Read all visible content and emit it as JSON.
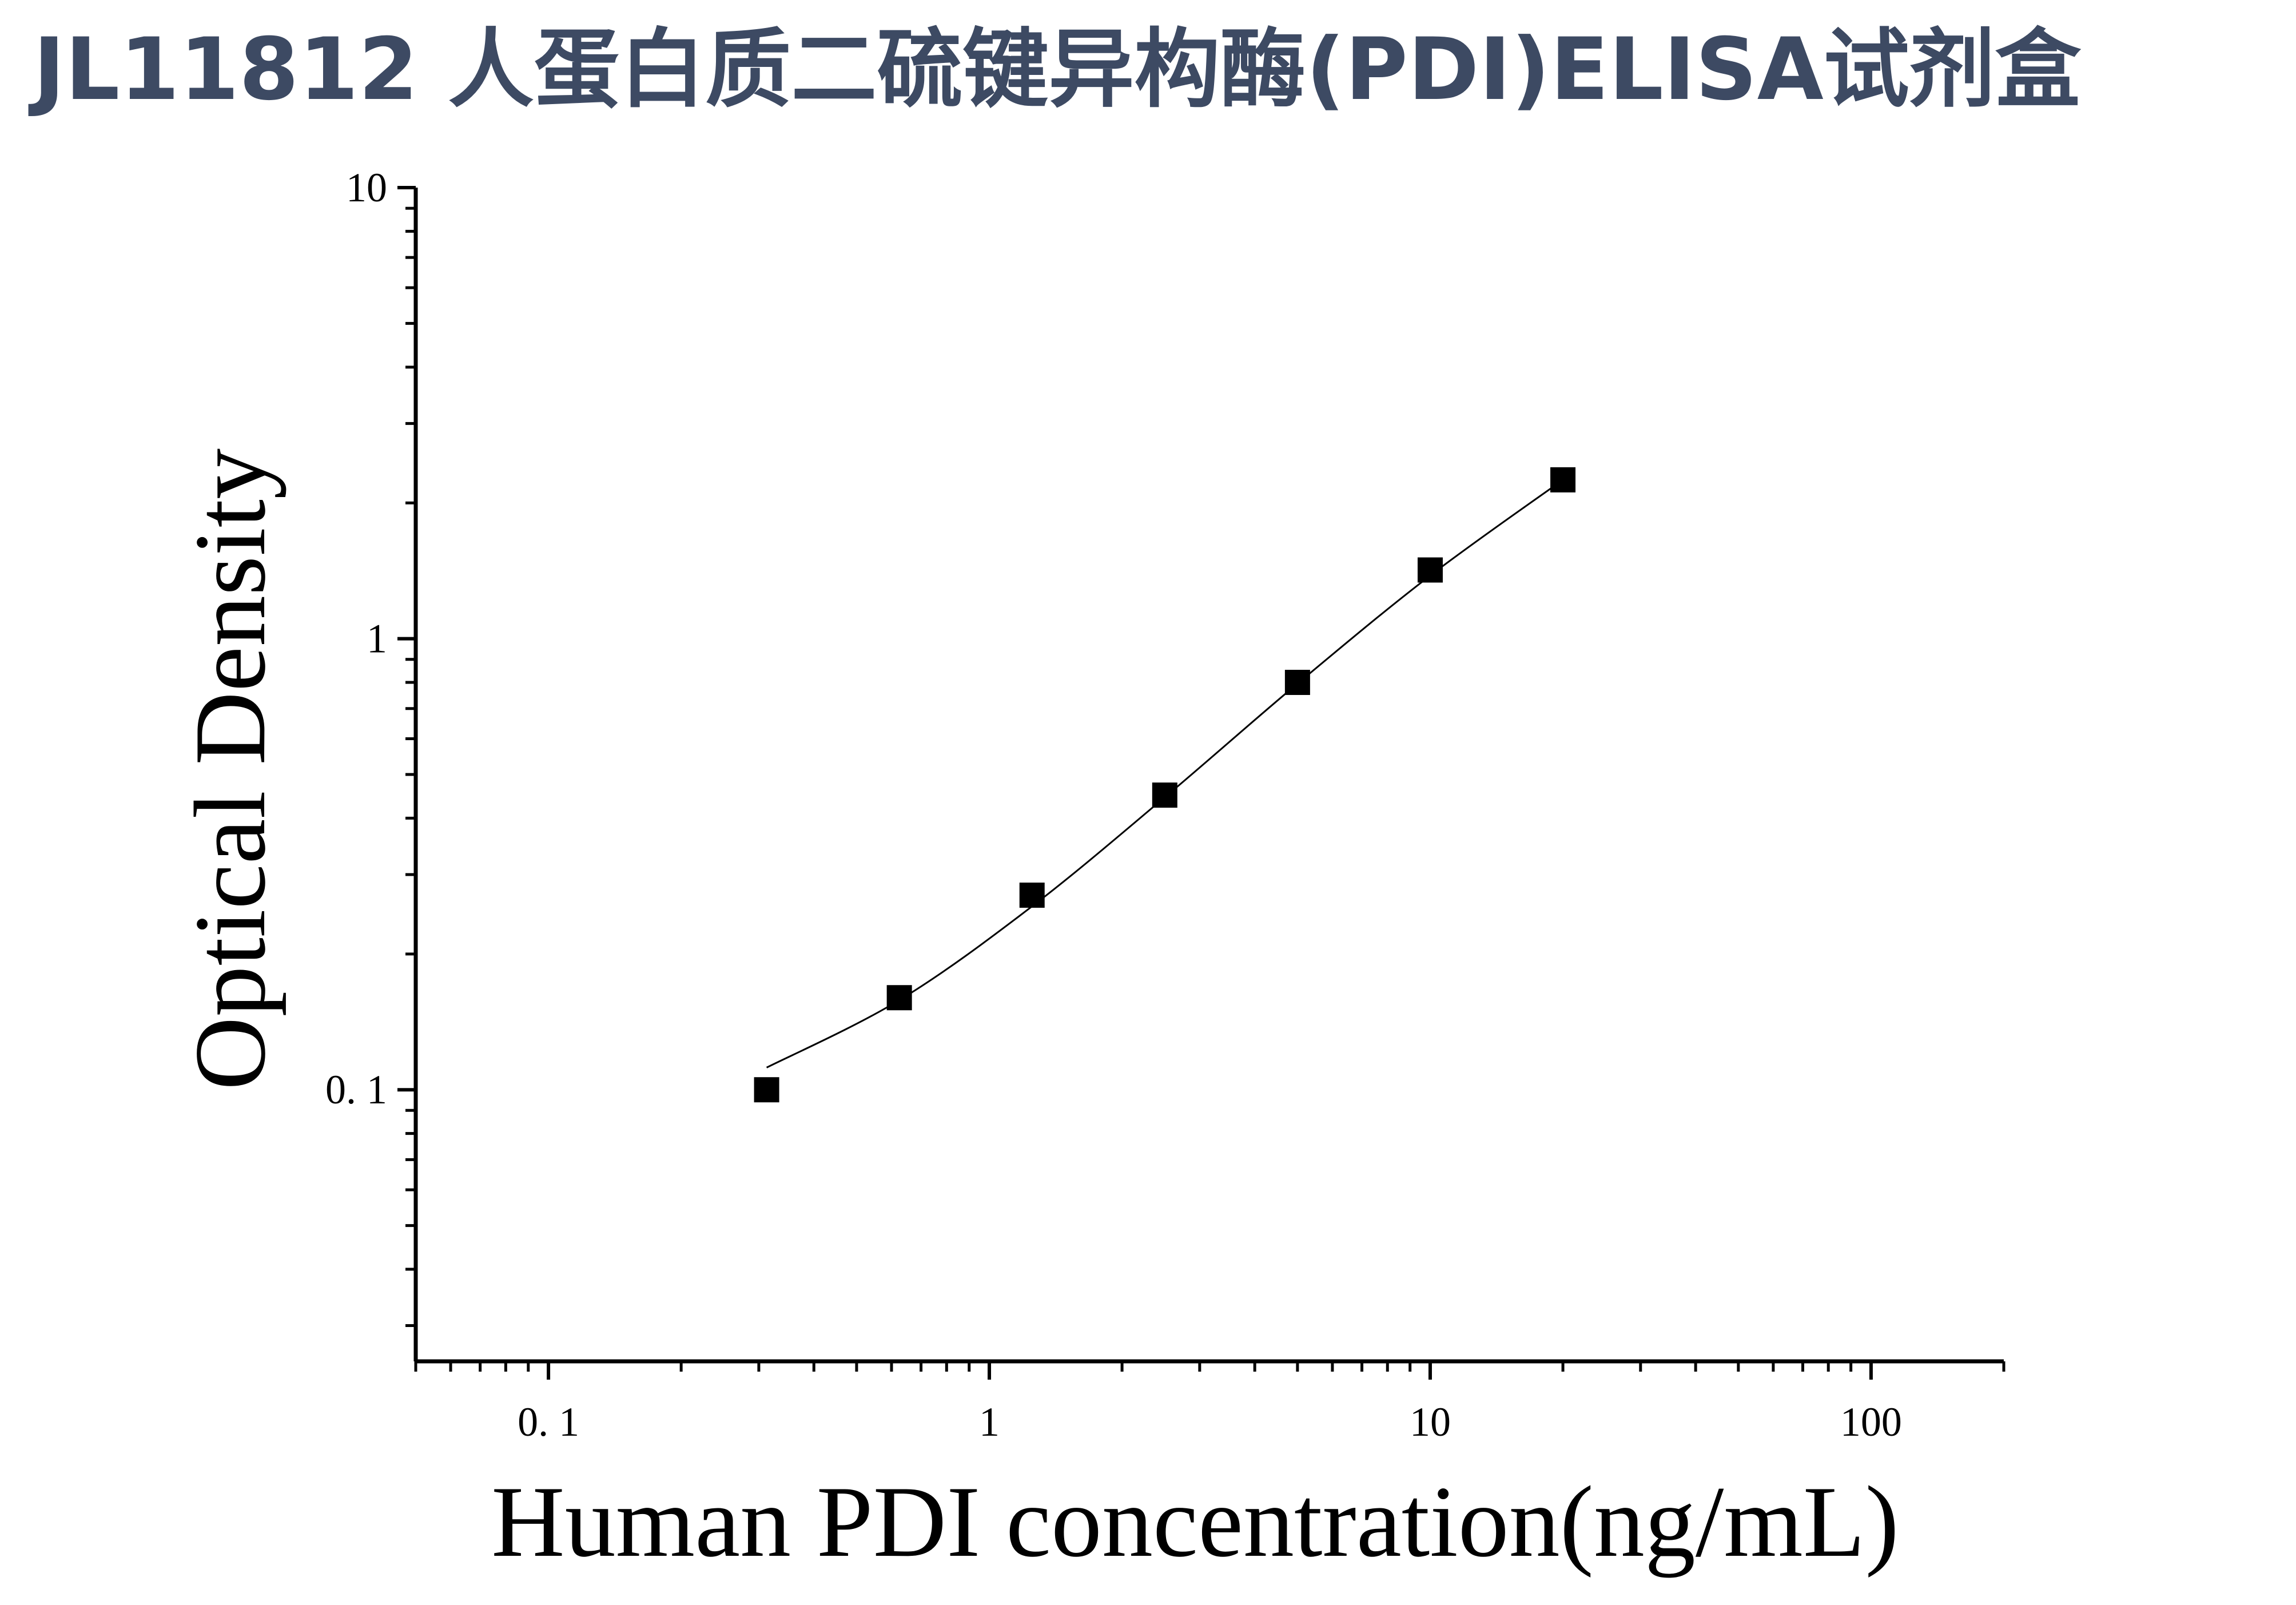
{
  "title": "JL11812 人蛋白质二硫键异构酶(PDI)ELISA试剂盒",
  "colors": {
    "title": "#3d4a63",
    "marks": "#000000",
    "background": "#ffffff"
  },
  "chart_data": {
    "type": "scatter",
    "title": "JL11812 人蛋白质二硫键异构酶(PDI)ELISA试剂盒",
    "xlabel": "Human PDI concentration(ng/mL)",
    "ylabel": "Optical Density",
    "xscale": "log",
    "yscale": "log",
    "xlim": [
      0.05,
      200
    ],
    "ylim": [
      0.025,
      10
    ],
    "xticks": [
      0.1,
      1,
      10,
      100
    ],
    "xtick_labels": [
      "0. 1",
      "1",
      "10",
      "100"
    ],
    "yticks": [
      0.1,
      1,
      10
    ],
    "ytick_labels": [
      "0. 1",
      "1",
      "10"
    ],
    "grid": false,
    "legend": "none",
    "series": [
      {
        "marker": "square",
        "x": [
          0.3125,
          0.625,
          1.25,
          2.5,
          5,
          10,
          20
        ],
        "y": [
          0.1,
          0.16,
          0.27,
          0.45,
          0.8,
          1.42,
          2.25
        ]
      }
    ],
    "fit_curve": {
      "type": "smooth",
      "x": [
        0.3125,
        0.625,
        1.25,
        2.5,
        5,
        10,
        20
      ],
      "y": [
        0.112,
        0.158,
        0.255,
        0.445,
        0.795,
        1.38,
        2.25
      ]
    }
  }
}
